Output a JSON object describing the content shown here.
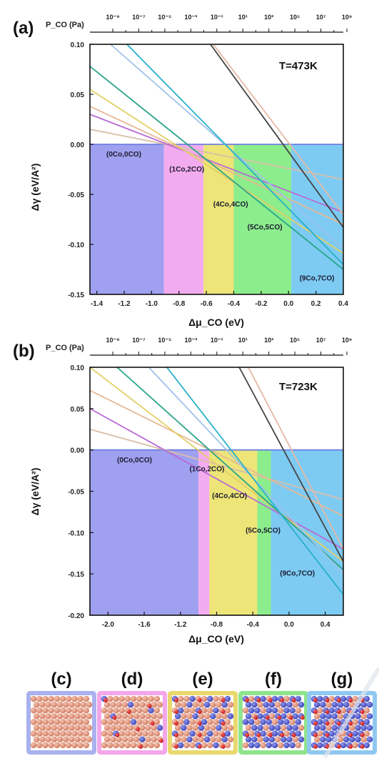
{
  "chart_data": [
    {
      "panel": "(a)",
      "type": "line",
      "annotation": "T=473K",
      "xlabel": "Δμ_CO (eV)",
      "ylabel": "Δγ (eV/A²)",
      "top_axis_label": "P_CO (Pa)",
      "top_tick_labels": [
        "10⁻⁹",
        "10⁻⁷",
        "10⁻⁵",
        "10⁻³",
        "10⁻¹",
        "10¹",
        "10³",
        "10⁵",
        "10⁷",
        "10⁹"
      ],
      "xlim": [
        -1.45,
        0.4
      ],
      "ylim": [
        -0.15,
        0.1
      ],
      "xticks": [
        -1.4,
        -1.2,
        -1.0,
        -0.8,
        -0.6,
        -0.4,
        -0.2,
        0.0,
        0.2,
        0.4
      ],
      "xtick_labels": [
        "-1.4",
        "-1.2",
        "-1.0",
        "-0.8",
        "-0.6",
        "-0.4",
        "-0.2",
        "0.0",
        "0.2",
        "0.4"
      ],
      "yticks": [
        0.1,
        0.05,
        0.0,
        -0.05,
        -0.1,
        -0.15
      ],
      "ytick_labels": [
        "0.10",
        "0.05",
        "0.00",
        "-0.05",
        "-0.10",
        "-0.15"
      ],
      "regions": [
        {
          "label": "(0Co,0CO)",
          "x0": -1.45,
          "x1": -0.91,
          "color": "#9b9bef"
        },
        {
          "label": "(1Co,2CO)",
          "x0": -0.91,
          "x1": -0.62,
          "color": "#f2a6ee"
        },
        {
          "label": "(4Co,4CO)",
          "x0": -0.62,
          "x1": -0.4,
          "color": "#ece470"
        },
        {
          "label": "(5Co,5CO)",
          "x0": -0.4,
          "x1": 0.02,
          "color": "#86ec86"
        },
        {
          "label": "(9Co,7CO)",
          "x0": 0.02,
          "x1": 0.4,
          "color": "#76c8f2"
        }
      ],
      "series": [
        {
          "color": "#6f7fe0",
          "points": [
            [
              -1.45,
              0.0
            ],
            [
              0.4,
              0.0
            ]
          ]
        },
        {
          "color": "#d8bfa8",
          "points": [
            [
              -1.45,
              0.015
            ],
            [
              0.4,
              -0.035
            ]
          ]
        },
        {
          "color": "#b96ad6",
          "points": [
            [
              -1.45,
              0.03
            ],
            [
              0.4,
              -0.068
            ]
          ]
        },
        {
          "color": "#e6b894",
          "points": [
            [
              -1.45,
              0.038
            ],
            [
              0.4,
              -0.08
            ]
          ]
        },
        {
          "color": "#e3cf66",
          "points": [
            [
              -1.45,
              0.055
            ],
            [
              0.4,
              -0.109
            ]
          ]
        },
        {
          "color": "#2aa58a",
          "points": [
            [
              -1.45,
              0.078
            ],
            [
              0.4,
              -0.125
            ]
          ]
        },
        {
          "color": "#9ec3ea",
          "points": [
            [
              -1.3,
              0.1
            ],
            [
              0.4,
              -0.104
            ]
          ]
        },
        {
          "color": "#27b0c9",
          "points": [
            [
              -1.18,
              0.1
            ],
            [
              0.4,
              -0.12
            ]
          ]
        },
        {
          "color": "#e5b9a5",
          "points": [
            [
              -0.55,
              0.1
            ],
            [
              0.4,
              -0.07
            ]
          ]
        },
        {
          "color": "#444444",
          "points": [
            [
              -0.57,
              0.1
            ],
            [
              0.4,
              -0.083
            ]
          ]
        }
      ]
    },
    {
      "panel": "(b)",
      "type": "line",
      "annotation": "T=723K",
      "xlabel": "Δμ_CO (eV)",
      "ylabel": "Δγ (eV/A²)",
      "top_axis_label": "P_CO (Pa)",
      "top_tick_labels": [
        "10⁻⁹",
        "10⁻⁷",
        "10⁻⁵",
        "10⁻³",
        "10⁻¹",
        "10¹",
        "10³",
        "10⁵",
        "10⁷",
        "10⁹"
      ],
      "xlim": [
        -2.2,
        0.6
      ],
      "ylim": [
        -0.2,
        0.1
      ],
      "xticks": [
        -2.0,
        -1.6,
        -1.2,
        -0.8,
        -0.4,
        0.0,
        0.4
      ],
      "xtick_labels": [
        "-2.0",
        "-1.6",
        "-1.2",
        "-0.8",
        "-0.4",
        "0.0",
        "0.4"
      ],
      "yticks": [
        0.1,
        0.05,
        0.0,
        -0.05,
        -0.1,
        -0.15,
        -0.2
      ],
      "ytick_labels": [
        "0.10",
        "0.05",
        "0.00",
        "-0.05",
        "-0.10",
        "-0.15",
        "-0.20"
      ],
      "regions": [
        {
          "label": "(0Co,0CO)",
          "x0": -2.2,
          "x1": -1.0,
          "color": "#9b9bef"
        },
        {
          "label": "(1Co,2CO)",
          "x0": -1.0,
          "x1": -0.88,
          "color": "#f2a6ee"
        },
        {
          "label": "(4Co,4CO)",
          "x0": -0.88,
          "x1": -0.35,
          "color": "#ece470"
        },
        {
          "label": "(5Co,5CO)",
          "x0": -0.35,
          "x1": -0.2,
          "color": "#86ec86"
        },
        {
          "label": "(9Co,7CO)",
          "x0": -0.2,
          "x1": 0.6,
          "color": "#76c8f2"
        }
      ],
      "series": [
        {
          "color": "#6f7fe0",
          "points": [
            [
              -2.2,
              0.0
            ],
            [
              0.6,
              0.0
            ]
          ]
        },
        {
          "color": "#d8bfa8",
          "points": [
            [
              -2.2,
              0.025
            ],
            [
              0.6,
              -0.06
            ]
          ]
        },
        {
          "color": "#b96ad6",
          "points": [
            [
              -2.2,
              0.05
            ],
            [
              0.6,
              -0.12
            ]
          ]
        },
        {
          "color": "#e6b894",
          "points": [
            [
              -2.2,
              0.072
            ],
            [
              0.6,
              -0.08
            ]
          ]
        },
        {
          "color": "#e3cf66",
          "points": [
            [
              -2.2,
              0.1
            ],
            [
              0.6,
              -0.135
            ]
          ]
        },
        {
          "color": "#2aa58a",
          "points": [
            [
              -1.9,
              0.1
            ],
            [
              0.6,
              -0.145
            ]
          ]
        },
        {
          "color": "#9ec3ea",
          "points": [
            [
              -1.55,
              0.1
            ],
            [
              0.6,
              -0.15
            ]
          ]
        },
        {
          "color": "#27b0c9",
          "points": [
            [
              -1.35,
              0.1
            ],
            [
              0.6,
              -0.175
            ]
          ]
        },
        {
          "color": "#e5b9a5",
          "points": [
            [
              -0.45,
              0.1
            ],
            [
              0.6,
              -0.12
            ]
          ]
        },
        {
          "color": "#444444",
          "points": [
            [
              -0.55,
              0.1
            ],
            [
              0.6,
              -0.135
            ]
          ]
        }
      ]
    }
  ],
  "structure_panels": [
    {
      "label": "(c)",
      "border": "#a9b2ee",
      "pattern": "bare"
    },
    {
      "label": "(d)",
      "border": "#f3a6e8",
      "pattern": "d"
    },
    {
      "label": "(e)",
      "border": "#e9d86e",
      "pattern": "e"
    },
    {
      "label": "(f)",
      "border": "#8ee48c",
      "pattern": "f"
    },
    {
      "label": "(g)",
      "border": "#8fc8f0",
      "pattern": "g"
    }
  ]
}
